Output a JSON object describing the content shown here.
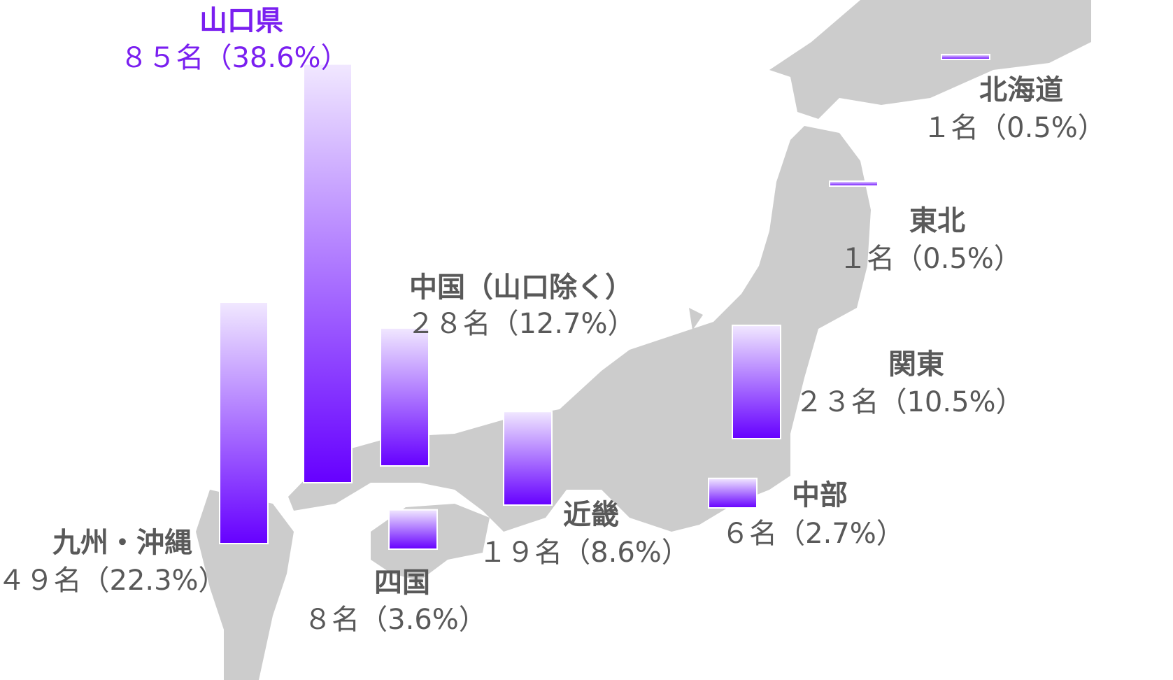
{
  "chart_data": {
    "type": "bar",
    "categories": [
      "九州・沖縄",
      "山口県",
      "中国（山口除く）",
      "四国",
      "近畿",
      "中部",
      "関東",
      "東北",
      "北海道"
    ],
    "values": [
      49,
      85,
      28,
      8,
      19,
      6,
      23,
      1,
      1
    ],
    "value_labels": [
      "４９名（22.3%）",
      "８５名（38.6%）",
      "２８名（12.7%）",
      "８名（3.6%）",
      "１９名（8.6%）",
      "６名（2.7%）",
      "２３名（10.5%）",
      "１名（0.5%）",
      "１名（0.5%）"
    ],
    "color": "#6600ff",
    "highlight": {
      "index": 1,
      "color": "#7a1ff0"
    }
  }
}
